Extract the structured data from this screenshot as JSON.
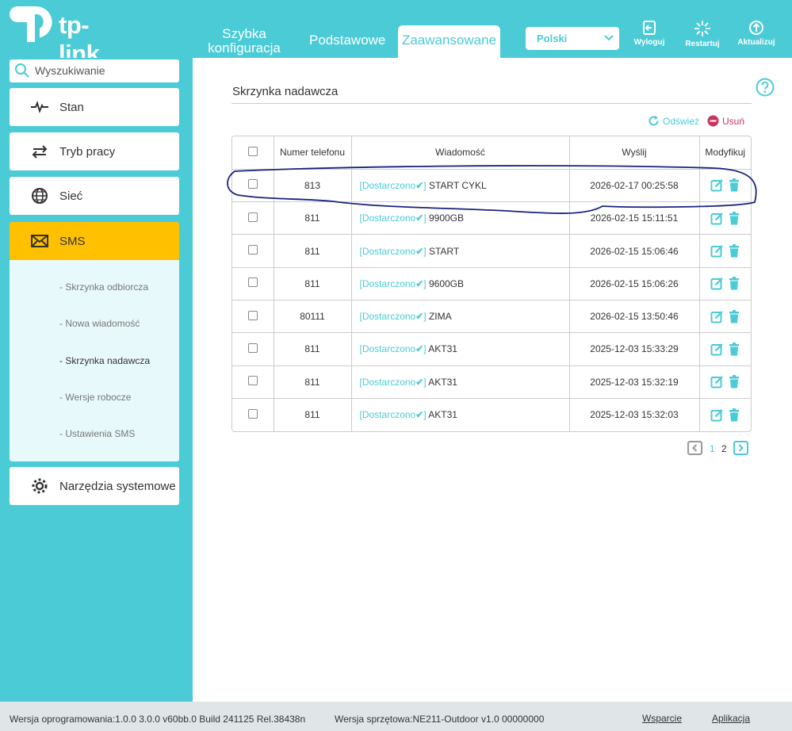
{
  "header": {
    "logo_text": "tp-link",
    "tabs": [
      {
        "label_line1": "Szybka",
        "label_line2": "konfiguracja"
      },
      {
        "label": "Podstawowe"
      },
      {
        "label": "Zaawansowane"
      }
    ],
    "language": "Polski",
    "buttons": {
      "logout": "Wyloguj",
      "restart": "Restartuj",
      "update": "Aktualizuj"
    }
  },
  "sidebar": {
    "search_placeholder": "Wyszukiwanie",
    "items": [
      {
        "label": "Stan",
        "icon": "pulse-icon"
      },
      {
        "label": "Tryb pracy",
        "icon": "mode-switch-icon"
      },
      {
        "label": "Sieć",
        "icon": "globe-icon"
      },
      {
        "label": "SMS",
        "icon": "envelope-icon"
      },
      {
        "label": "Narzędzia systemowe",
        "icon": "gear-icon"
      }
    ],
    "sms_sub": [
      "- Skrzynka odbiorcza",
      "- Nowa wiadomość",
      "- Skrzynka nadawcza",
      "- Wersje robocze",
      "- Ustawienia SMS"
    ]
  },
  "main": {
    "title": "Skrzynka nadawcza",
    "refresh": "Odśwież",
    "delete": "Usuń",
    "columns": [
      "Numer telefonu",
      "Wiadomość",
      "Wyślij",
      "Modyfikuj"
    ],
    "rows": [
      {
        "phone": "813",
        "status": "Dostarczono",
        "text": "START CYKL",
        "sent": "2026-02-17 00:25:58"
      },
      {
        "phone": "811",
        "status": "Dostarczono",
        "text": "9900GB",
        "sent": "2026-02-15 15:11:51"
      },
      {
        "phone": "811",
        "status": "Dostarczono",
        "text": "START",
        "sent": "2026-02-15 15:06:46"
      },
      {
        "phone": "811",
        "status": "Dostarczono",
        "text": "9600GB",
        "sent": "2026-02-15 15:06:26"
      },
      {
        "phone": "80111",
        "status": "Dostarczono",
        "text": "ZIMA",
        "sent": "2026-02-15 13:50:46"
      },
      {
        "phone": "811",
        "status": "Dostarczono",
        "text": "AKT31",
        "sent": "2025-12-03 15:33:29"
      },
      {
        "phone": "811",
        "status": "Dostarczono",
        "text": "AKT31",
        "sent": "2025-12-03 15:32:19"
      },
      {
        "phone": "811",
        "status": "Dostarczono",
        "text": "AKT31",
        "sent": "2025-12-03 15:32:03"
      }
    ],
    "pages": [
      "1",
      "2"
    ]
  },
  "footer": {
    "firmware": "Wersja oprogramowania:1.0.0 3.0.0 v60bb.0 Build 241125 Rel.38438n",
    "hardware": "Wersja sprzętowa:NE211-Outdoor v1.0 00000000",
    "support": "Wsparcie",
    "app": "Aplikacja"
  },
  "colors": {
    "accent": "#4acbd6",
    "active": "#ffc000",
    "delete": "#c8355e",
    "annotation": "#1a237e"
  }
}
